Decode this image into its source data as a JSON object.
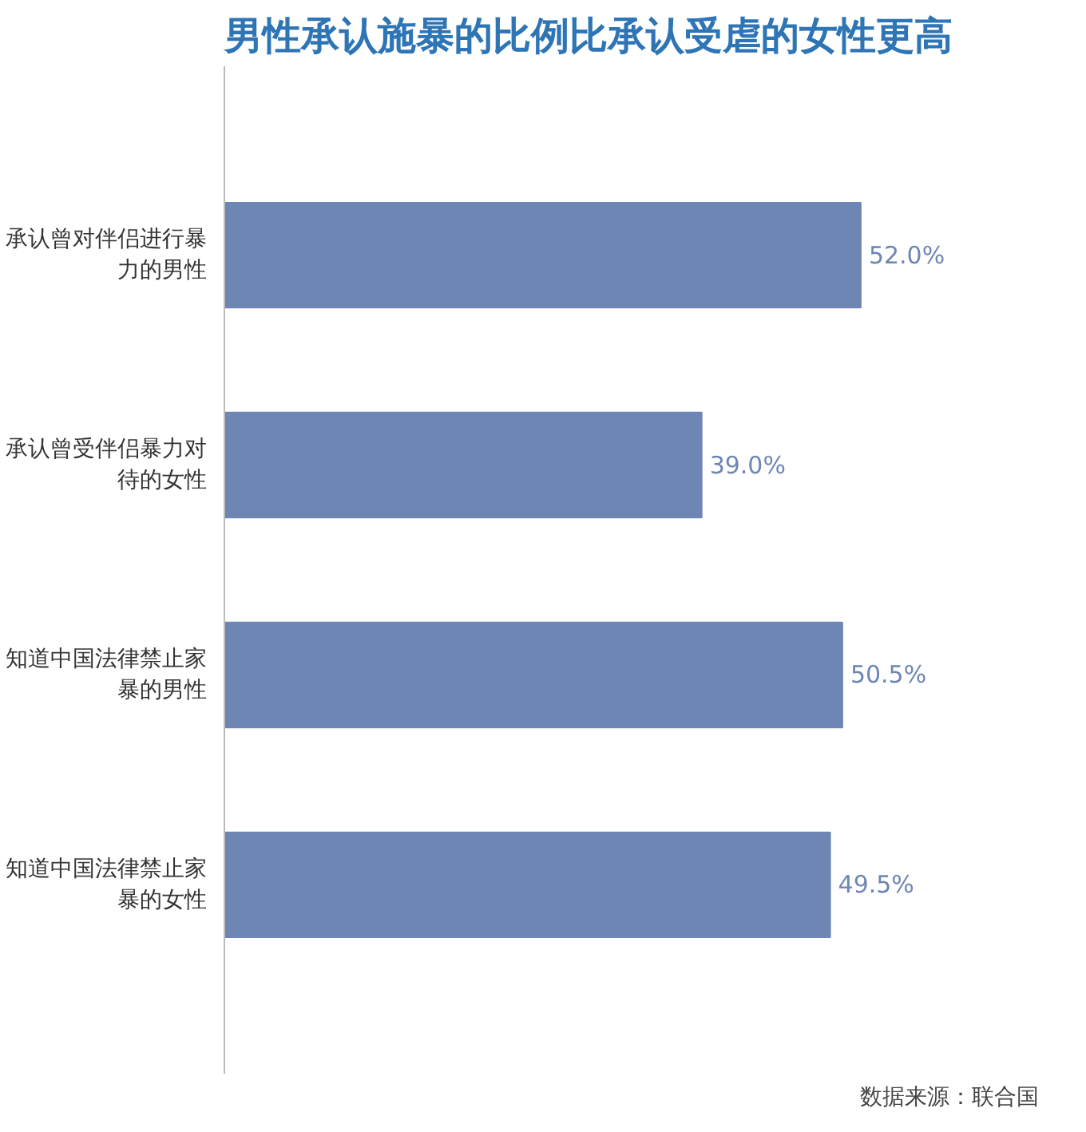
{
  "chart_data": {
    "type": "bar",
    "orientation": "horizontal",
    "title": "男性承认施暴的比例比承认受虐的女性更高",
    "categories": [
      "承认曾对伴侣进行暴力的男性",
      "承认曾受伴侣暴力对待的女性",
      "知道中国法律禁止家暴的男性",
      "知道中国法律禁止家暴的女性"
    ],
    "values": [
      52.0,
      39.0,
      50.5,
      49.5
    ],
    "color": "#6d86b4",
    "value_labels": [
      "52.0%",
      "39.0%",
      "50.5%",
      "49.5%"
    ],
    "annotations": [
      "数据来源：联合国"
    ]
  }
}
